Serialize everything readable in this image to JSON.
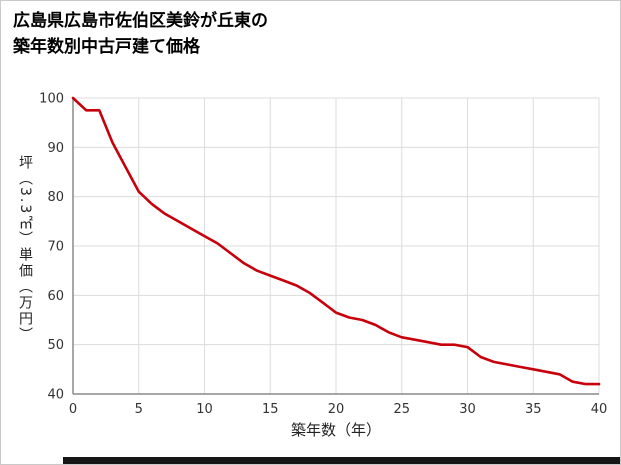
{
  "page": {
    "background": "#ffffff",
    "border_color": "#c9c9c9",
    "footer_bar_color": "#161616"
  },
  "title": {
    "line1": "広島県広島市佐伯区美鈴が丘東の",
    "line2": "築年数別中古戸建て価格"
  },
  "chart_data": {
    "type": "line",
    "title": "広島県広島市佐伯区美鈴が丘東の築年数別中古戸建て価格",
    "xlabel": "築年数（年）",
    "ylabel": "坪（3.3㎡）単価（万円）",
    "xlim": [
      0,
      40
    ],
    "ylim": [
      40,
      100
    ],
    "x_ticks": [
      0,
      5,
      10,
      15,
      20,
      25,
      30,
      35,
      40
    ],
    "y_ticks": [
      40,
      50,
      60,
      70,
      80,
      90,
      100
    ],
    "grid": true,
    "legend": false,
    "line_color": "#c7000b",
    "grid_color": "#dcdcdc",
    "axis_color": "#8a8a8a",
    "tick_label_color": "#333333",
    "x": [
      0,
      1,
      2,
      3,
      4,
      5,
      6,
      7,
      8,
      9,
      10,
      11,
      12,
      13,
      14,
      15,
      16,
      17,
      18,
      19,
      20,
      21,
      22,
      23,
      24,
      25,
      26,
      27,
      28,
      29,
      30,
      31,
      32,
      33,
      34,
      35,
      36,
      37,
      38,
      39,
      40
    ],
    "values": [
      100,
      97.5,
      97.5,
      91,
      86,
      81,
      78.5,
      76.5,
      75,
      73.5,
      72,
      70.5,
      68.5,
      66.5,
      65,
      64,
      63,
      62,
      60.5,
      58.5,
      56.5,
      55.5,
      55,
      54,
      52.5,
      51.5,
      51,
      50.5,
      50,
      50,
      49.5,
      47.5,
      46.5,
      46,
      45.5,
      45,
      44.5,
      44,
      42.5,
      42,
      42
    ]
  }
}
